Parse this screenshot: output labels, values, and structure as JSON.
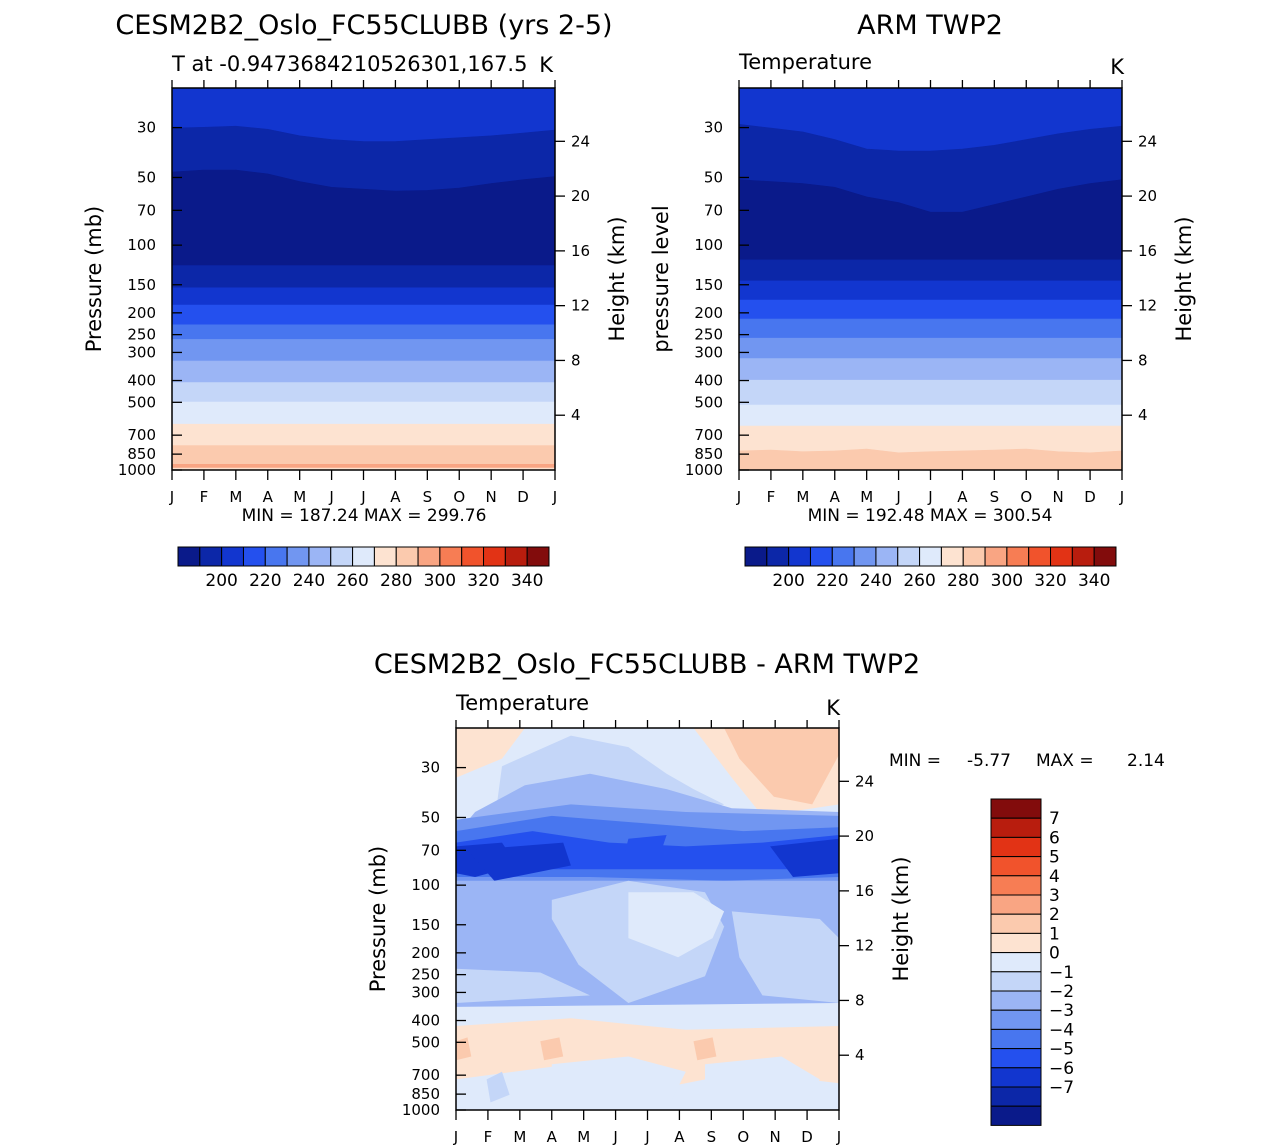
{
  "panel_top_left": {
    "title": "CESM2B2_Oslo_FC55CLUBB (yrs 2-5)",
    "subtitle_left": "T at -0.9473684210526301,167.5",
    "subtitle_right": "K",
    "ylabel_left": "Pressure (mb)",
    "ylabel_right": "Height (km)",
    "stats": "MIN = 187.24 MAX = 299.76"
  },
  "panel_top_right": {
    "title": "ARM TWP2",
    "subtitle_left": "Temperature",
    "subtitle_right": "K",
    "ylabel_left": "pressure level",
    "ylabel_right": "Height (km)",
    "stats": "MIN = 192.48 MAX = 300.54"
  },
  "panel_bottom": {
    "title": "CESM2B2_Oslo_FC55CLUBB - ARM TWP2",
    "subtitle_left": "Temperature",
    "subtitle_right": "K",
    "ylabel_left": "Pressure (mb)",
    "ylabel_right": "Height (km)",
    "stats_min_label": "MIN =",
    "stats_min_value": "-5.77",
    "stats_max_label": "MAX =",
    "stats_max_value": "2.14"
  },
  "colorbar_abs": {
    "labels": [
      "200",
      "220",
      "240",
      "260",
      "280",
      "300",
      "320",
      "340"
    ],
    "colors": [
      "#0a1a8a",
      "#0c27a8",
      "#1236cf",
      "#2450ee",
      "#4876ef",
      "#7196f1",
      "#9bb5f5",
      "#c4d6f8",
      "#dfeafb",
      "#fde3d1",
      "#fbcaae",
      "#f9a583",
      "#f77d54",
      "#f1532c",
      "#e23315",
      "#b81d0e",
      "#820c0c"
    ]
  },
  "colorbar_diff": {
    "labels": [
      "7",
      "6",
      "5",
      "4",
      "3",
      "2",
      "1",
      "0",
      "-1",
      "-2",
      "-3",
      "-4",
      "-5",
      "-6",
      "-7"
    ],
    "colors": [
      "#820c0c",
      "#b81d0e",
      "#e23315",
      "#f1532c",
      "#f77d54",
      "#f9a583",
      "#fbcaae",
      "#fde3d1",
      "#dfeafb",
      "#c4d6f8",
      "#9bb5f5",
      "#7196f1",
      "#4876ef",
      "#2450ee",
      "#1236cf",
      "#0c27a8",
      "#0a1a8a"
    ]
  },
  "chart_data": [
    {
      "type": "heatmap",
      "title": "CESM2B2_Oslo_FC55CLUBB (yrs 2-5)",
      "subtitle": "T at -0.9473684210526301,167.5",
      "units": "K",
      "x": [
        "J",
        "F",
        "M",
        "A",
        "M",
        "J",
        "J",
        "A",
        "S",
        "O",
        "N",
        "D",
        "J"
      ],
      "y_pressure_ticks": [
        30,
        50,
        70,
        100,
        150,
        200,
        250,
        300,
        400,
        500,
        700,
        850,
        1000
      ],
      "y_height_ticks": [
        24,
        20,
        16,
        12,
        8,
        4
      ],
      "ylabel": "Pressure (mb)",
      "y2label": "Height (km)",
      "min": 187.24,
      "max": 299.76,
      "ylim": [
        1000,
        20
      ]
    },
    {
      "type": "heatmap",
      "title": "ARM TWP2",
      "subtitle": "Temperature",
      "units": "K",
      "x": [
        "J",
        "F",
        "M",
        "A",
        "M",
        "J",
        "J",
        "A",
        "S",
        "O",
        "N",
        "D",
        "J"
      ],
      "y_pressure_ticks": [
        30,
        50,
        70,
        100,
        150,
        200,
        250,
        300,
        400,
        500,
        700,
        850,
        1000
      ],
      "y_height_ticks": [
        24,
        20,
        16,
        12,
        8,
        4
      ],
      "ylabel": "pressure level",
      "y2label": "Height (km)",
      "min": 192.48,
      "max": 300.54,
      "ylim": [
        1000,
        20
      ]
    },
    {
      "type": "heatmap",
      "title": "CESM2B2_Oslo_FC55CLUBB - ARM TWP2",
      "subtitle": "Temperature",
      "units": "K",
      "x": [
        "J",
        "F",
        "M",
        "A",
        "M",
        "J",
        "J",
        "A",
        "S",
        "O",
        "N",
        "D",
        "J"
      ],
      "y_pressure_ticks": [
        30,
        50,
        70,
        100,
        150,
        200,
        250,
        300,
        400,
        500,
        700,
        850,
        1000
      ],
      "y_height_ticks": [
        24,
        20,
        16,
        12,
        8,
        4
      ],
      "ylabel": "Pressure (mb)",
      "y2label": "Height (km)",
      "min": -5.77,
      "max": 2.14,
      "levels": [
        -7,
        -6,
        -5,
        -4,
        -3,
        -2,
        -1,
        0,
        1,
        2,
        3,
        4,
        5,
        6,
        7
      ],
      "ylim": [
        1000,
        20
      ]
    }
  ],
  "axes": {
    "x_ticks": [
      "J",
      "F",
      "M",
      "A",
      "M",
      "J",
      "J",
      "A",
      "S",
      "O",
      "N",
      "D",
      "J"
    ],
    "p_ticks": [
      "30",
      "50",
      "70",
      "100",
      "150",
      "200",
      "250",
      "300",
      "400",
      "500",
      "700",
      "850",
      "1000"
    ],
    "h_ticks": [
      "24",
      "20",
      "16",
      "12",
      "8",
      "4"
    ]
  }
}
